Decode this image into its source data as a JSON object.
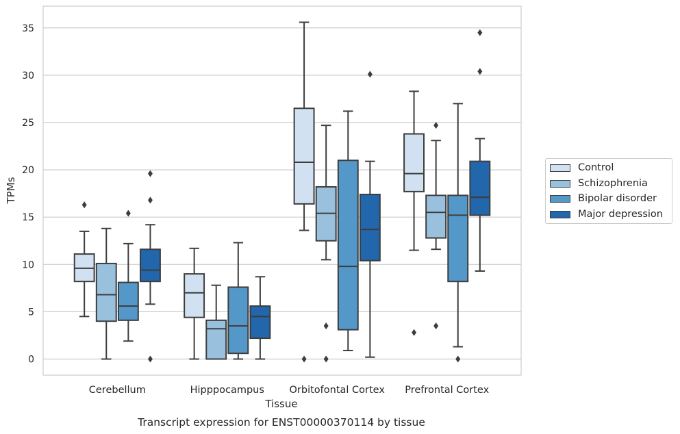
{
  "chart_data": {
    "type": "box",
    "caption": "Transcript expression for ENST00000370114 by tissue",
    "xlabel": "Tissue",
    "ylabel": "TPMs",
    "ylim": [
      -1.7,
      37.3
    ],
    "yticks": [
      0,
      5,
      10,
      15,
      20,
      25,
      30,
      35
    ],
    "grid": true,
    "legend_placement": "center-right",
    "categories": [
      "Cerebellum",
      "Hipppocampus",
      "Orbitofontal Cortex",
      "Prefrontal Cortex"
    ],
    "series": [
      {
        "name": "Control",
        "color": "#d2e1f1",
        "boxes": [
          {
            "whislo": 4.5,
            "q1": 8.2,
            "med": 9.6,
            "q3": 11.1,
            "whishi": 13.5,
            "fliers": [
              16.3
            ]
          },
          {
            "whislo": 0.0,
            "q1": 4.4,
            "med": 7.0,
            "q3": 9.0,
            "whishi": 11.7,
            "fliers": []
          },
          {
            "whislo": 13.6,
            "q1": 16.4,
            "med": 20.8,
            "q3": 26.5,
            "whishi": 35.6,
            "fliers": [
              0.0
            ]
          },
          {
            "whislo": 11.5,
            "q1": 17.7,
            "med": 19.6,
            "q3": 23.8,
            "whishi": 28.3,
            "fliers": [
              2.8
            ]
          }
        ]
      },
      {
        "name": "Schizophrenia",
        "color": "#99c1de",
        "boxes": [
          {
            "whislo": 0.0,
            "q1": 4.0,
            "med": 6.8,
            "q3": 10.1,
            "whishi": 13.8,
            "fliers": []
          },
          {
            "whislo": 0.0,
            "q1": 0.0,
            "med": 3.2,
            "q3": 4.1,
            "whishi": 7.8,
            "fliers": []
          },
          {
            "whislo": 10.5,
            "q1": 12.5,
            "med": 15.4,
            "q3": 18.2,
            "whishi": 24.7,
            "fliers": [
              3.5,
              0.0
            ]
          },
          {
            "whislo": 11.6,
            "q1": 12.8,
            "med": 15.5,
            "q3": 17.3,
            "whishi": 23.1,
            "fliers": [
              24.7,
              3.5
            ]
          }
        ]
      },
      {
        "name": "Bipolar disorder",
        "color": "#5498c9",
        "boxes": [
          {
            "whislo": 1.9,
            "q1": 4.1,
            "med": 5.6,
            "q3": 8.1,
            "whishi": 12.2,
            "fliers": [
              15.4
            ]
          },
          {
            "whislo": 0.0,
            "q1": 0.6,
            "med": 3.5,
            "q3": 7.6,
            "whishi": 12.3,
            "fliers": []
          },
          {
            "whislo": 0.9,
            "q1": 3.1,
            "med": 9.8,
            "q3": 21.0,
            "whishi": 26.2,
            "fliers": []
          },
          {
            "whislo": 1.3,
            "q1": 8.2,
            "med": 15.2,
            "q3": 17.3,
            "whishi": 27.0,
            "fliers": [
              0.0
            ]
          }
        ]
      },
      {
        "name": "Major depression",
        "color": "#2266ab",
        "boxes": [
          {
            "whislo": 5.8,
            "q1": 8.2,
            "med": 9.4,
            "q3": 11.6,
            "whishi": 14.2,
            "fliers": [
              19.6,
              16.8,
              0.0
            ]
          },
          {
            "whislo": 0.0,
            "q1": 2.2,
            "med": 4.5,
            "q3": 5.6,
            "whishi": 8.7,
            "fliers": []
          },
          {
            "whislo": 0.2,
            "q1": 10.4,
            "med": 13.7,
            "q3": 17.4,
            "whishi": 20.9,
            "fliers": [
              30.1
            ]
          },
          {
            "whislo": 9.3,
            "q1": 15.2,
            "med": 17.1,
            "q3": 20.9,
            "whishi": 23.3,
            "fliers": [
              34.5,
              30.4
            ]
          }
        ]
      }
    ]
  }
}
